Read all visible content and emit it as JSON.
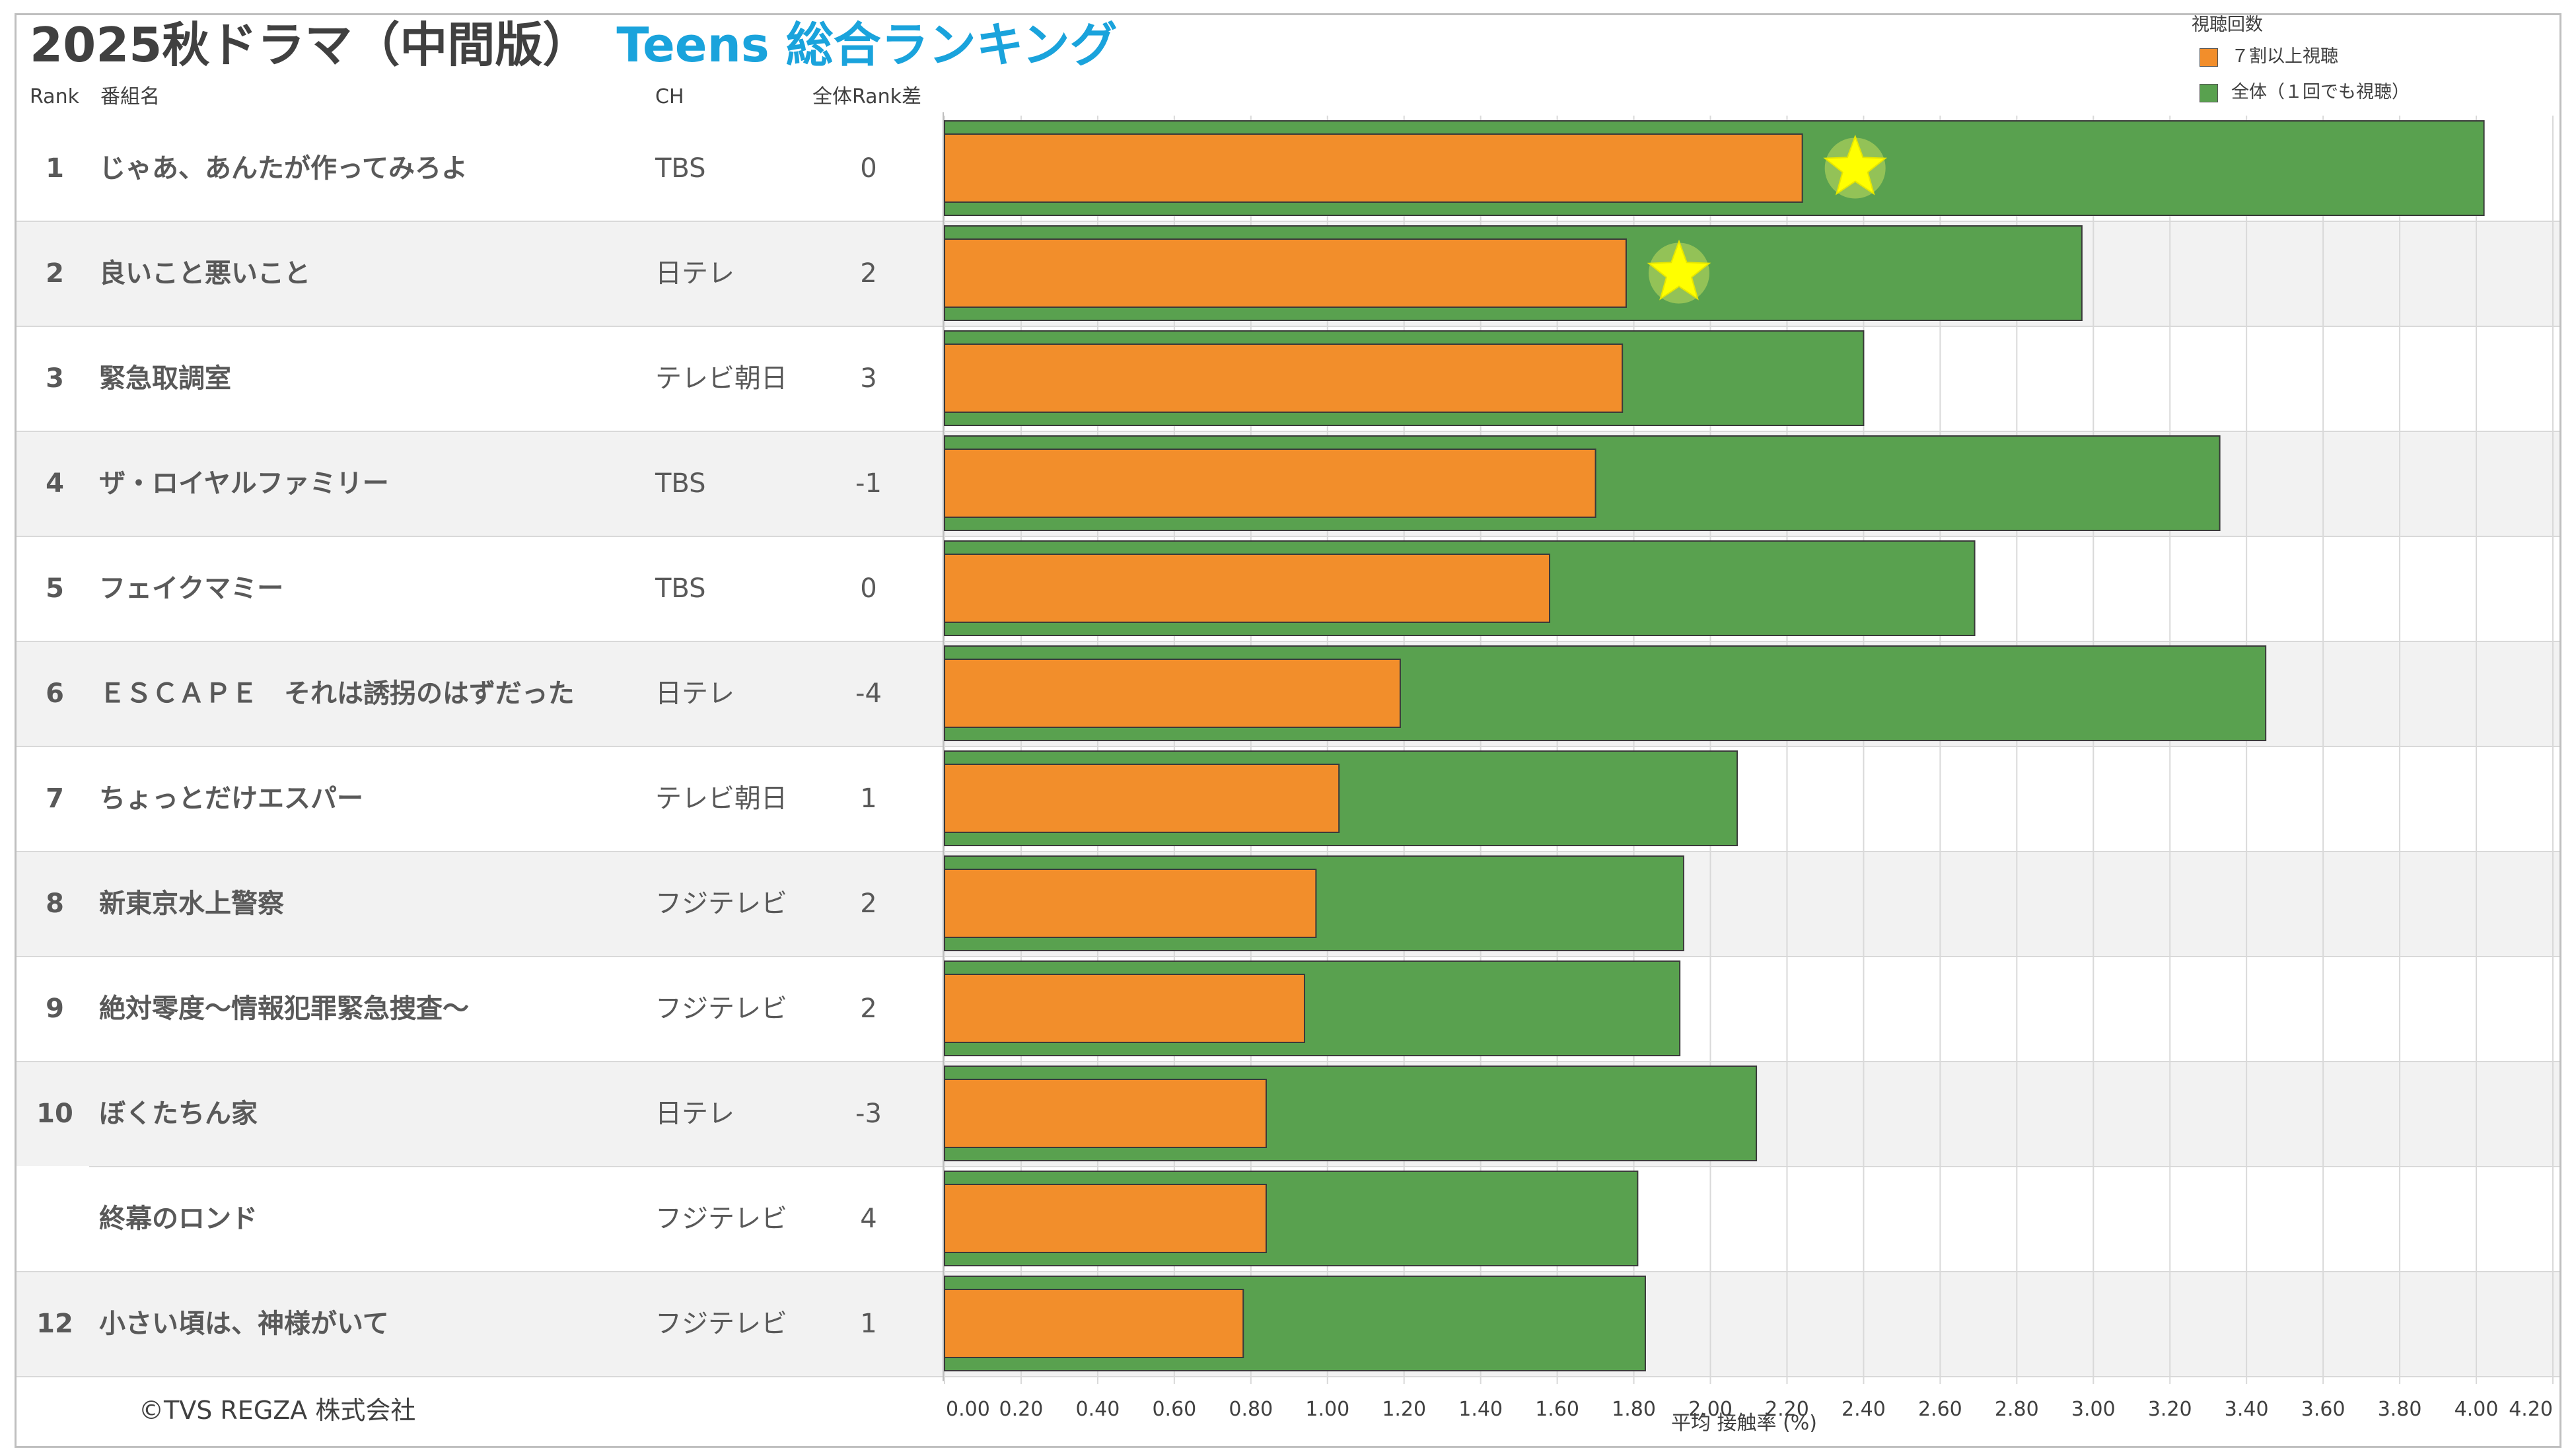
{
  "header": {
    "title_main": "2025秋ドラマ（中間版）",
    "title_sub": "Teens 総合ランキング",
    "col_rank": "Rank",
    "col_program": "番組名",
    "col_channel": "CH",
    "col_diff": "全体Rank差"
  },
  "legend": {
    "title": "視聴回数",
    "items": [
      {
        "label": "７割以上視聴",
        "color": "#f28e2b"
      },
      {
        "label": "全体（１回でも視聴）",
        "color": "#59a14f"
      }
    ]
  },
  "footer": {
    "copyright": "©TVS REGZA 株式会社"
  },
  "chart_data": {
    "type": "bar",
    "orientation": "horizontal",
    "title": "2025秋ドラマ（中間版） Teens 総合ランキング",
    "xlabel": "平均 接触率 (%)",
    "xlim": [
      0,
      4.2
    ],
    "xticks": [
      "0.00",
      "0.20",
      "0.40",
      "0.60",
      "0.80",
      "1.00",
      "1.20",
      "1.40",
      "1.60",
      "1.80",
      "2.00",
      "2.20",
      "2.40",
      "2.60",
      "2.80",
      "3.00",
      "3.20",
      "3.40",
      "3.60",
      "3.80",
      "4.00",
      "4.20"
    ],
    "grid": true,
    "legend_position": "top-right",
    "rows": [
      {
        "rank": "1",
        "program": "じゃあ、あんたが作ってみろよ",
        "channel": "TBS",
        "diff": "0",
        "seventy": 2.24,
        "total": 4.02,
        "star": true
      },
      {
        "rank": "2",
        "program": "良いこと悪いこと",
        "channel": "日テレ",
        "diff": "2",
        "seventy": 1.78,
        "total": 2.97,
        "star": true
      },
      {
        "rank": "3",
        "program": "緊急取調室",
        "channel": "テレビ朝日",
        "diff": "3",
        "seventy": 1.77,
        "total": 2.4,
        "star": false
      },
      {
        "rank": "4",
        "program": "ザ・ロイヤルファミリー",
        "channel": "TBS",
        "diff": "-1",
        "seventy": 1.7,
        "total": 3.33,
        "star": false
      },
      {
        "rank": "5",
        "program": "フェイクマミー",
        "channel": "TBS",
        "diff": "0",
        "seventy": 1.58,
        "total": 2.69,
        "star": false
      },
      {
        "rank": "6",
        "program": "ＥＳＣＡＰＥ　それは誘拐のはずだった",
        "channel": "日テレ",
        "diff": "-4",
        "seventy": 1.19,
        "total": 3.45,
        "star": false
      },
      {
        "rank": "7",
        "program": "ちょっとだけエスパー",
        "channel": "テレビ朝日",
        "diff": "1",
        "seventy": 1.03,
        "total": 2.07,
        "star": false
      },
      {
        "rank": "8",
        "program": "新東京水上警察",
        "channel": "フジテレビ",
        "diff": "2",
        "seventy": 0.97,
        "total": 1.93,
        "star": false
      },
      {
        "rank": "9",
        "program": "絶対零度～情報犯罪緊急捜査～",
        "channel": "フジテレビ",
        "diff": "2",
        "seventy": 0.94,
        "total": 1.92,
        "star": false
      },
      {
        "rank": "10",
        "program": "ぼくたちん家",
        "channel": "日テレ",
        "diff": "-3",
        "seventy": 0.84,
        "total": 2.12,
        "star": false
      },
      {
        "rank": "",
        "program": "終幕のロンド",
        "channel": "フジテレビ",
        "diff": "4",
        "seventy": 0.84,
        "total": 1.81,
        "star": false
      },
      {
        "rank": "12",
        "program": "小さい頃は、神様がいて",
        "channel": "フジテレビ",
        "diff": "1",
        "seventy": 0.78,
        "total": 1.83,
        "star": false
      }
    ]
  }
}
